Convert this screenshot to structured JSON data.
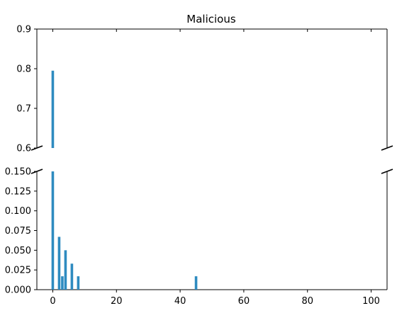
{
  "chart_data": {
    "type": "bar",
    "title": "Malicious",
    "xlabel": "",
    "ylabel": "",
    "xlim": [
      -5,
      105
    ],
    "x_ticks": [
      0,
      20,
      40,
      60,
      80,
      100
    ],
    "broken_y_axis": true,
    "panels": [
      {
        "name": "upper",
        "ylim": [
          0.6,
          0.9
        ],
        "y_ticks": [
          "0.6",
          "0.7",
          "0.8",
          "0.9"
        ],
        "y_tick_values": [
          0.6,
          0.7,
          0.8,
          0.9
        ]
      },
      {
        "name": "lower",
        "ylim": [
          0.0,
          0.15
        ],
        "y_ticks": [
          "0.000",
          "0.025",
          "0.050",
          "0.075",
          "0.100",
          "0.125",
          "0.150"
        ],
        "y_tick_values": [
          0.0,
          0.025,
          0.05,
          0.075,
          0.1,
          0.125,
          0.15
        ]
      }
    ],
    "series": [
      {
        "color": "#2e8bc0",
        "x": [
          0,
          2,
          3,
          4,
          6,
          8,
          45
        ],
        "values": [
          0.795,
          0.067,
          0.017,
          0.05,
          0.033,
          0.017,
          0.017
        ]
      }
    ]
  }
}
